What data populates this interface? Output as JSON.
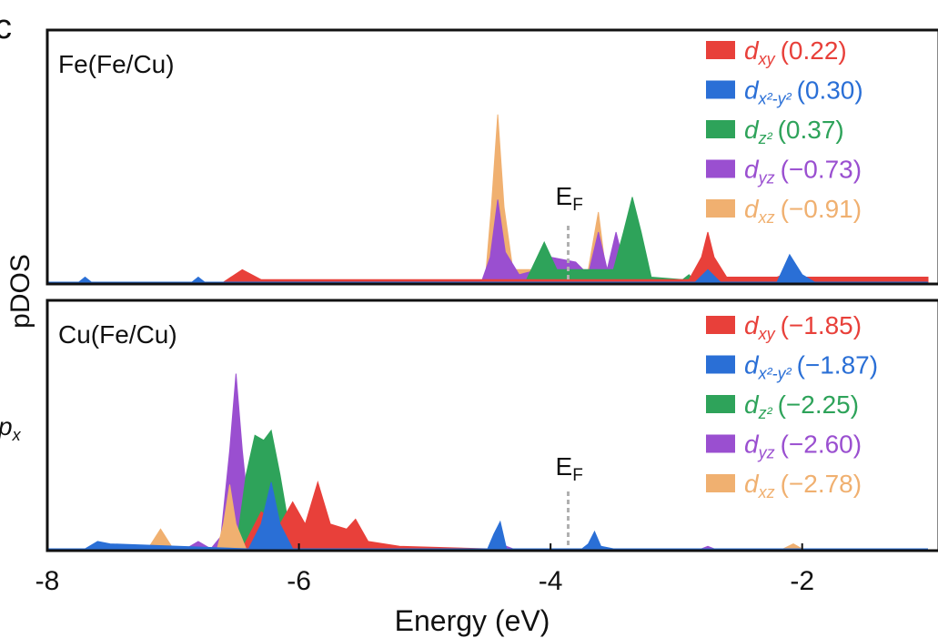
{
  "fragments": [
    {
      "text": "c"
    },
    {
      "text": "p",
      "sub": "x"
    }
  ],
  "chart_data": [
    {
      "type": "area",
      "title": "Fe(Fe/Cu)",
      "ylabel": "pDOS",
      "xlim": [
        -8,
        -1
      ],
      "ylim": [
        0,
        1
      ],
      "annotation": {
        "text": "E",
        "sub": "F",
        "x": -3.86
      },
      "series": [
        {
          "name": "d",
          "subscript": "xy",
          "charge": "(0.22)",
          "color": "#e8403a",
          "x": [
            -8,
            -6.6,
            -6.45,
            -6.3,
            -5.5,
            -2.9,
            -2.8,
            -2.75,
            -2.7,
            -2.6,
            -2.2,
            -2.1,
            -2.0,
            -1.0
          ],
          "values": [
            0,
            0,
            0.05,
            0.01,
            0.01,
            0.01,
            0.1,
            0.2,
            0.1,
            0.02,
            0.02,
            0.04,
            0.02,
            0.02
          ]
        },
        {
          "name": "d",
          "subscript": "x²-y²",
          "charge": "(0.30)",
          "color": "#2a6fd6",
          "x": [
            -8,
            -7.75,
            -7.7,
            -7.65,
            -6.85,
            -6.8,
            -6.75,
            -2.85,
            -2.75,
            -2.65,
            -2.2,
            -2.1,
            -2.0,
            -1.9,
            -1.0
          ],
          "values": [
            0,
            0,
            0.02,
            0,
            0,
            0.02,
            0,
            0,
            0.05,
            0,
            0,
            0.11,
            0.03,
            0,
            0
          ]
        },
        {
          "name": "d",
          "subscript": "z²",
          "charge": "(0.37)",
          "color": "#2ea35a",
          "x": [
            -8,
            -4.2,
            -4.05,
            -3.95,
            -3.5,
            -3.42,
            -3.35,
            -3.28,
            -3.2,
            -2.95,
            -2.9,
            -2.85,
            -1
          ],
          "values": [
            0,
            0,
            0.16,
            0.05,
            0.05,
            0.2,
            0.34,
            0.2,
            0.02,
            0.01,
            0.03,
            0,
            0
          ]
        },
        {
          "name": "d",
          "subscript": "yz",
          "charge": "(−0.73)",
          "color": "#9a4fd0",
          "x": [
            -8,
            -4.55,
            -4.48,
            -4.42,
            -4.36,
            -4.25,
            -4.1,
            -4.0,
            -3.8,
            -3.7,
            -3.62,
            -3.55,
            -3.48,
            -3.4,
            -3.3,
            -1
          ],
          "values": [
            0,
            0,
            0.1,
            0.33,
            0.12,
            0.03,
            0.05,
            0.1,
            0.08,
            0.03,
            0.2,
            0.05,
            0.2,
            0.04,
            0,
            0
          ]
        },
        {
          "name": "d",
          "subscript": "xz",
          "charge": "(−0.91)",
          "color": "#f0b070",
          "x": [
            -8,
            -4.52,
            -4.47,
            -4.42,
            -4.37,
            -4.3,
            -3.7,
            -3.62,
            -3.55,
            -1
          ],
          "values": [
            0,
            0,
            0.3,
            0.67,
            0.3,
            0.05,
            0.05,
            0.28,
            0,
            0
          ]
        }
      ]
    },
    {
      "type": "area",
      "title": "Cu(Fe/Cu)",
      "xlabel": "Energy (eV)",
      "xlim": [
        -8,
        -1
      ],
      "ylim": [
        0,
        1
      ],
      "xticks": [
        -8,
        -6,
        -4,
        -2
      ],
      "annotation": {
        "text": "E",
        "sub": "F",
        "x": -3.86
      },
      "series": [
        {
          "name": "d",
          "subscript": "xy",
          "charge": "(−1.85)",
          "color": "#e8403a",
          "x": [
            -8,
            -6.45,
            -6.3,
            -6.15,
            -6.05,
            -5.95,
            -5.85,
            -5.75,
            -5.62,
            -5.55,
            -5.45,
            -5.2,
            -4.5,
            -1
          ],
          "values": [
            0,
            0,
            0.15,
            0.1,
            0.19,
            0.1,
            0.27,
            0.1,
            0.08,
            0.12,
            0.03,
            0.01,
            0,
            0
          ]
        },
        {
          "name": "d",
          "subscript": "x²-y²",
          "charge": "(−1.87)",
          "color": "#2a6fd6",
          "x": [
            -8,
            -7.7,
            -7.6,
            -7.5,
            -6.4,
            -6.3,
            -6.22,
            -6.15,
            -6.05,
            -4.5,
            -4.45,
            -4.4,
            -4.35,
            -3.75,
            -3.7,
            -3.65,
            -3.6,
            -3.5,
            -1
          ],
          "values": [
            0,
            0,
            0.03,
            0.02,
            0,
            0.1,
            0.27,
            0.1,
            0,
            0,
            0.06,
            0.11,
            0,
            0,
            0.02,
            0.07,
            0.01,
            0,
            0
          ]
        },
        {
          "name": "d",
          "subscript": "z²",
          "charge": "(−2.25)",
          "color": "#2ea35a",
          "x": [
            -8,
            -6.5,
            -6.42,
            -6.35,
            -6.28,
            -6.22,
            -6.15,
            -6.05,
            -4.45,
            -4.4,
            -4.35,
            -1
          ],
          "values": [
            0,
            0,
            0.3,
            0.46,
            0.44,
            0.48,
            0.3,
            0,
            0,
            0.03,
            0,
            0
          ]
        },
        {
          "name": "d",
          "subscript": "yz",
          "charge": "(−2.60)",
          "color": "#9a4fd0",
          "x": [
            -8,
            -6.9,
            -6.8,
            -6.7,
            -6.62,
            -6.55,
            -6.5,
            -6.45,
            -6.38,
            -6.3,
            -4.5,
            -4.4,
            -4.3,
            -2.8,
            -2.75,
            -2.7,
            -1
          ],
          "values": [
            0,
            0,
            0.03,
            0,
            0.05,
            0.4,
            0.71,
            0.4,
            0.05,
            0,
            0,
            0.02,
            0,
            0,
            0.01,
            0,
            0
          ]
        },
        {
          "name": "d",
          "subscript": "xz",
          "charge": "(−2.78)",
          "color": "#f0b070",
          "x": [
            -8,
            -7.2,
            -7.1,
            -7.0,
            -6.65,
            -6.6,
            -6.55,
            -6.5,
            -6.42,
            -2.15,
            -2.07,
            -2.0,
            -1
          ],
          "values": [
            0,
            0,
            0.08,
            0,
            0,
            0.1,
            0.26,
            0.1,
            0,
            0,
            0.02,
            0,
            0
          ]
        }
      ]
    }
  ]
}
